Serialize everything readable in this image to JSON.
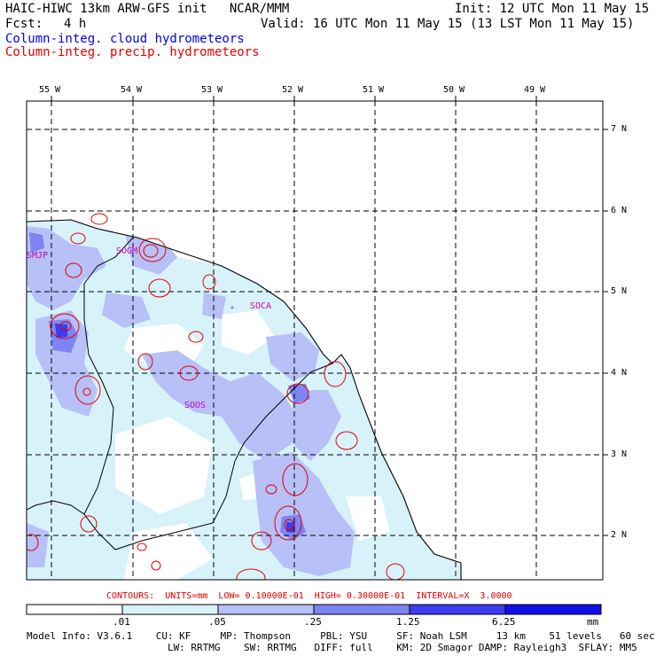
{
  "header": {
    "title": "HAIC-HIWC 13km ARW-GFS init   NCAR/MMM",
    "init": "Init: 12 UTC Mon 11 May 15",
    "fcst_label": "Fcst:",
    "fcst_value": "4 h",
    "valid": "Valid: 16 UTC Mon 11 May 15 (13 LST Mon 11 May 15)",
    "field1": "Column-integ. cloud hydrometeors",
    "field2": "Column-integ. precip. hydrometeors"
  },
  "colors": {
    "cloud_levels": [
      "#ffffff",
      "#d8f2fa",
      "#b8c0f8",
      "#7e84f4",
      "#3c3cf0",
      "#1010e8"
    ],
    "precip_contour": "#e00000",
    "station": "#c000c0",
    "field1_text": "#0000ee",
    "field2_text": "#e00000"
  },
  "map": {
    "lon_labels": [
      "55 W",
      "54 W",
      "53 W",
      "52 W",
      "51 W",
      "50 W",
      "49 W"
    ],
    "lat_labels": [
      "7 N",
      "6 N",
      "5 N",
      "4 N",
      "3 N",
      "2 N"
    ],
    "stations": [
      "SMJP",
      "SOGM",
      "SOCA",
      "SOOS"
    ]
  },
  "contours_line": "CONTOURS:  UNITS=mm  LOW= 0.10000E-01  HIGH= 0.30000E-01  INTERVAL=X  3.0000",
  "colorbar": {
    "labels": [
      ".01",
      ".05",
      ".25",
      "1.25",
      "6.25"
    ],
    "units": "mm"
  },
  "footer": {
    "line1": "Model Info: V3.6.1    CU: KF     MP: Thompson     PBL: YSU     SF: Noah LSM     13 km    51 levels   60 sec",
    "line2": "                        LW: RRTMG    SW: RRTMG   DIFF: full    KM: 2D Smagor DAMP: Rayleigh3  SFLAY: MM5"
  }
}
